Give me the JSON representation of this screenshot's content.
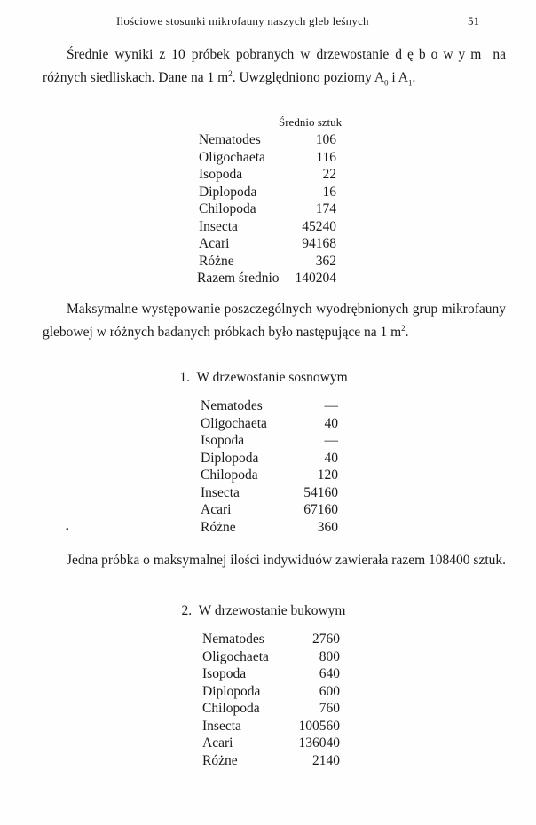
{
  "running_header": {
    "title": "Ilościowe stosunki mikrofauny naszych gleb leśnych",
    "page_number": "51"
  },
  "intro": {
    "text_a": "Średnie wyniki z 10 próbek pobranych w drzewostanie ",
    "spaced": "dębowym",
    "text_b": " na różnych siedliskach. Dane na 1 m",
    "sup": "2",
    "text_c": ". Uwzględniono poziomy A",
    "sub0": "0",
    "text_d": " i A",
    "sub1": "1",
    "text_e": "."
  },
  "table_avg": {
    "column_header": "Średnio sztuk",
    "rows": [
      {
        "name": "Nematodes",
        "value": "106"
      },
      {
        "name": "Oligochaeta",
        "value": "116"
      },
      {
        "name": "Isopoda",
        "value": "22"
      },
      {
        "name": "Diplopoda",
        "value": "16"
      },
      {
        "name": "Chilopoda",
        "value": "174"
      },
      {
        "name": "Insecta",
        "value": "45240"
      },
      {
        "name": "Acari",
        "value": "94168"
      },
      {
        "name": "Różne",
        "value": "362"
      }
    ],
    "total_label": "Razem średnio",
    "total_value": "140204"
  },
  "para2": {
    "text": "Maksymalne występowanie poszczególnych wyodrębnionych grup mikrofauny glebowej w różnych badanych próbkach było następujące na 1 m",
    "sup": "2",
    "end": "."
  },
  "section1": {
    "heading": "1.  W drzewostanie sosnowym",
    "rows": [
      {
        "name": "Nematodes",
        "value": "—"
      },
      {
        "name": "Oligochaeta",
        "value": "40"
      },
      {
        "name": "Isopoda",
        "value": "—"
      },
      {
        "name": "Diplopoda",
        "value": "40"
      },
      {
        "name": "Chilopoda",
        "value": "120"
      },
      {
        "name": "Insecta",
        "value": "54160"
      },
      {
        "name": "Acari",
        "value": "67160"
      },
      {
        "name": "Różne",
        "value": "360"
      }
    ]
  },
  "para3": {
    "text": "Jedna próbka o maksymalnej ilości indywiduów zawierała razem 108400 sztuk."
  },
  "section2": {
    "heading": "2.  W drzewostanie bukowym",
    "rows": [
      {
        "name": "Nematodes",
        "value": "2760"
      },
      {
        "name": "Oligochaeta",
        "value": "800"
      },
      {
        "name": "Isopoda",
        "value": "640"
      },
      {
        "name": "Diplopoda",
        "value": "600"
      },
      {
        "name": "Chilopoda",
        "value": "760"
      },
      {
        "name": "Insecta",
        "value": "100560"
      },
      {
        "name": "Acari",
        "value": "136040"
      },
      {
        "name": "Różne",
        "value": "2140"
      }
    ]
  }
}
